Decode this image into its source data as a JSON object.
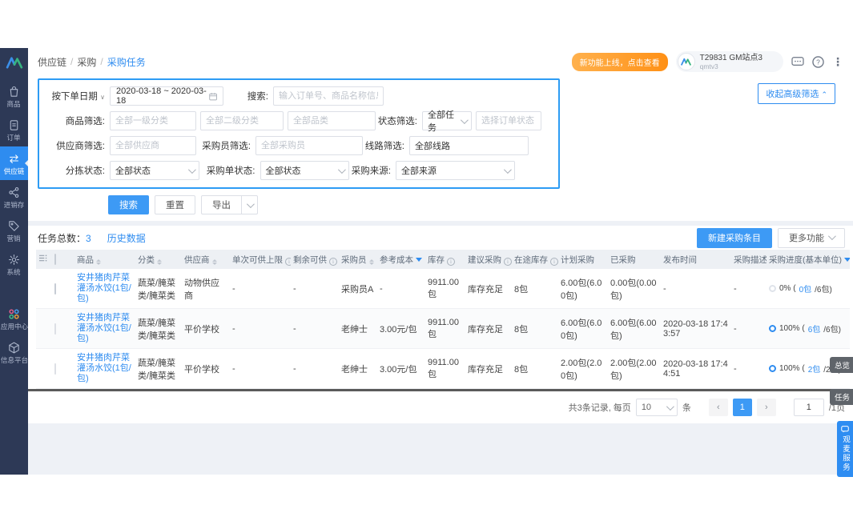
{
  "sidebar": {
    "items": [
      {
        "label": "商品",
        "icon": "goods-icon",
        "active": false
      },
      {
        "label": "订单",
        "icon": "orders-icon",
        "active": false
      },
      {
        "label": "供应链",
        "icon": "supply-chain-icon",
        "active": true
      },
      {
        "label": "进销存",
        "icon": "inventory-icon",
        "active": false
      },
      {
        "label": "营销",
        "icon": "marketing-icon",
        "active": false
      },
      {
        "label": "系统",
        "icon": "settings-icon",
        "active": false
      }
    ],
    "bottom_items": [
      {
        "label": "应用中心",
        "icon": "app-center-icon"
      },
      {
        "label": "信息平台",
        "icon": "info-platform-icon"
      }
    ]
  },
  "topbar": {
    "breadcrumb": [
      {
        "label": "供应链",
        "active": false
      },
      {
        "label": "采购",
        "active": false
      },
      {
        "label": "采购任务",
        "active": true
      }
    ],
    "promo_badge": "新功能上线，点击查看",
    "user_name": "T29831 GM站点3",
    "user_sub": "qmtv3"
  },
  "filter": {
    "date_label": "按下单日期",
    "date_value": "2020-03-18 ~ 2020-03-18",
    "search_label": "搜索:",
    "search_placeholder": "输入订单号、商品名称信息搜索",
    "product_label": "商品筛选:",
    "product_l1_placeholder": "全部一级分类",
    "product_l2_placeholder": "全部二级分类",
    "product_l3_placeholder": "全部品类",
    "status_label": "状态筛选:",
    "status_value": "全部任务",
    "order_status_placeholder": "选择订单状态",
    "supplier_label": "供应商筛选:",
    "supplier_placeholder": "全部供应商",
    "buyer_label": "采购员筛选:",
    "buyer_placeholder": "全部采购员",
    "route_label": "线路筛选:",
    "route_value": "全部线路",
    "sorting_label": "分拣状态:",
    "sorting_value": "全部状态",
    "po_status_label": "采购单状态:",
    "po_status_value": "全部状态",
    "source_label": "采购来源:",
    "source_value": "全部来源",
    "collapse_button": "收起高级筛选",
    "search_button": "搜索",
    "reset_button": "重置",
    "export_button": "导出"
  },
  "list": {
    "tab_total_label": "任务总数：",
    "tab_total_count": "3",
    "tab_history": "历史数据",
    "new_button": "新建采购条目",
    "more_button": "更多功能",
    "columns": [
      {
        "key": "handle",
        "label": "",
        "type": "handle"
      },
      {
        "key": "select",
        "label": "",
        "type": "checkbox"
      },
      {
        "key": "product",
        "label": "商品",
        "sortable": true
      },
      {
        "key": "category",
        "label": "分类",
        "sortable": true
      },
      {
        "key": "supplier",
        "label": "供应商",
        "sortable": true
      },
      {
        "key": "limit",
        "label": "单次可供上限",
        "info": true
      },
      {
        "key": "remaining",
        "label": "剩余可供",
        "info": true
      },
      {
        "key": "buyer",
        "label": "采购员",
        "sortable": true
      },
      {
        "key": "cost",
        "label": "参考成本",
        "sorted": "desc"
      },
      {
        "key": "stock",
        "label": "库存",
        "info": true
      },
      {
        "key": "suggest",
        "label": "建议采购",
        "info": true
      },
      {
        "key": "transit",
        "label": "在途库存",
        "info": true
      },
      {
        "key": "planned",
        "label": "计划采购"
      },
      {
        "key": "purchased",
        "label": "已采购"
      },
      {
        "key": "publish",
        "label": "发布时间"
      },
      {
        "key": "desc",
        "label": "采购描述"
      },
      {
        "key": "progress",
        "label": "采购进度(基本单位)",
        "sorted": "desc"
      }
    ],
    "rows": [
      {
        "checkbox": "enabled",
        "product": "安井猪肉芹菜灌汤水饺(1包/包)",
        "category": "蔬菜/腌菜类/腌菜类",
        "supplier": "动物供应商",
        "limit": "-",
        "remaining": "-",
        "buyer": "采购员A",
        "cost": "-",
        "stock": "9911.00包",
        "suggest": "库存充足",
        "transit": "8包",
        "planned": "6.00包(6.00包)",
        "purchased": "0.00包(0.00包)",
        "publish": "-",
        "desc": "-",
        "progress": {
          "percent": "0%",
          "done": "0包",
          "total": "6包",
          "complete": false
        }
      },
      {
        "checkbox": "disabled",
        "product": "安井猪肉芹菜灌汤水饺(1包/包)",
        "category": "蔬菜/腌菜类/腌菜类",
        "supplier": "平价学校",
        "limit": "-",
        "remaining": "-",
        "buyer": "老绅士",
        "cost": "3.00元/包",
        "stock": "9911.00包",
        "suggest": "库存充足",
        "transit": "8包",
        "planned": "6.00包(6.00包)",
        "purchased": "6.00包(6.00包)",
        "publish": "2020-03-18 17:43:57",
        "desc": "-",
        "progress": {
          "percent": "100%",
          "done": "6包",
          "total": "6包",
          "complete": true
        }
      },
      {
        "checkbox": "disabled",
        "product": "安井猪肉芹菜灌汤水饺(1包/包)",
        "category": "蔬菜/腌菜类/腌菜类",
        "supplier": "平价学校",
        "limit": "-",
        "remaining": "-",
        "buyer": "老绅士",
        "cost": "3.00元/包",
        "stock": "9911.00包",
        "suggest": "库存充足",
        "transit": "8包",
        "planned": "2.00包(2.00包)",
        "purchased": "2.00包(2.00包)",
        "publish": "2020-03-18 17:44:51",
        "desc": "-",
        "progress": {
          "percent": "100%",
          "done": "2包",
          "total": "2包",
          "complete": true
        }
      }
    ]
  },
  "pagination": {
    "total_text": "共3条记录, 每页",
    "page_size": "10",
    "unit": "条",
    "prev": "‹",
    "current_page": "1",
    "next": "›",
    "jump_value": "1",
    "total_pages_text": "/1页"
  },
  "float_tabs": [
    {
      "label": "总览"
    },
    {
      "label": "任务"
    },
    {
      "label": "观麦服务",
      "accent": true
    }
  ],
  "colors": {
    "accent_blue": "#2e8cf0",
    "sidebar_bg": "#2d3956",
    "promo_orange": "#ff9015"
  }
}
